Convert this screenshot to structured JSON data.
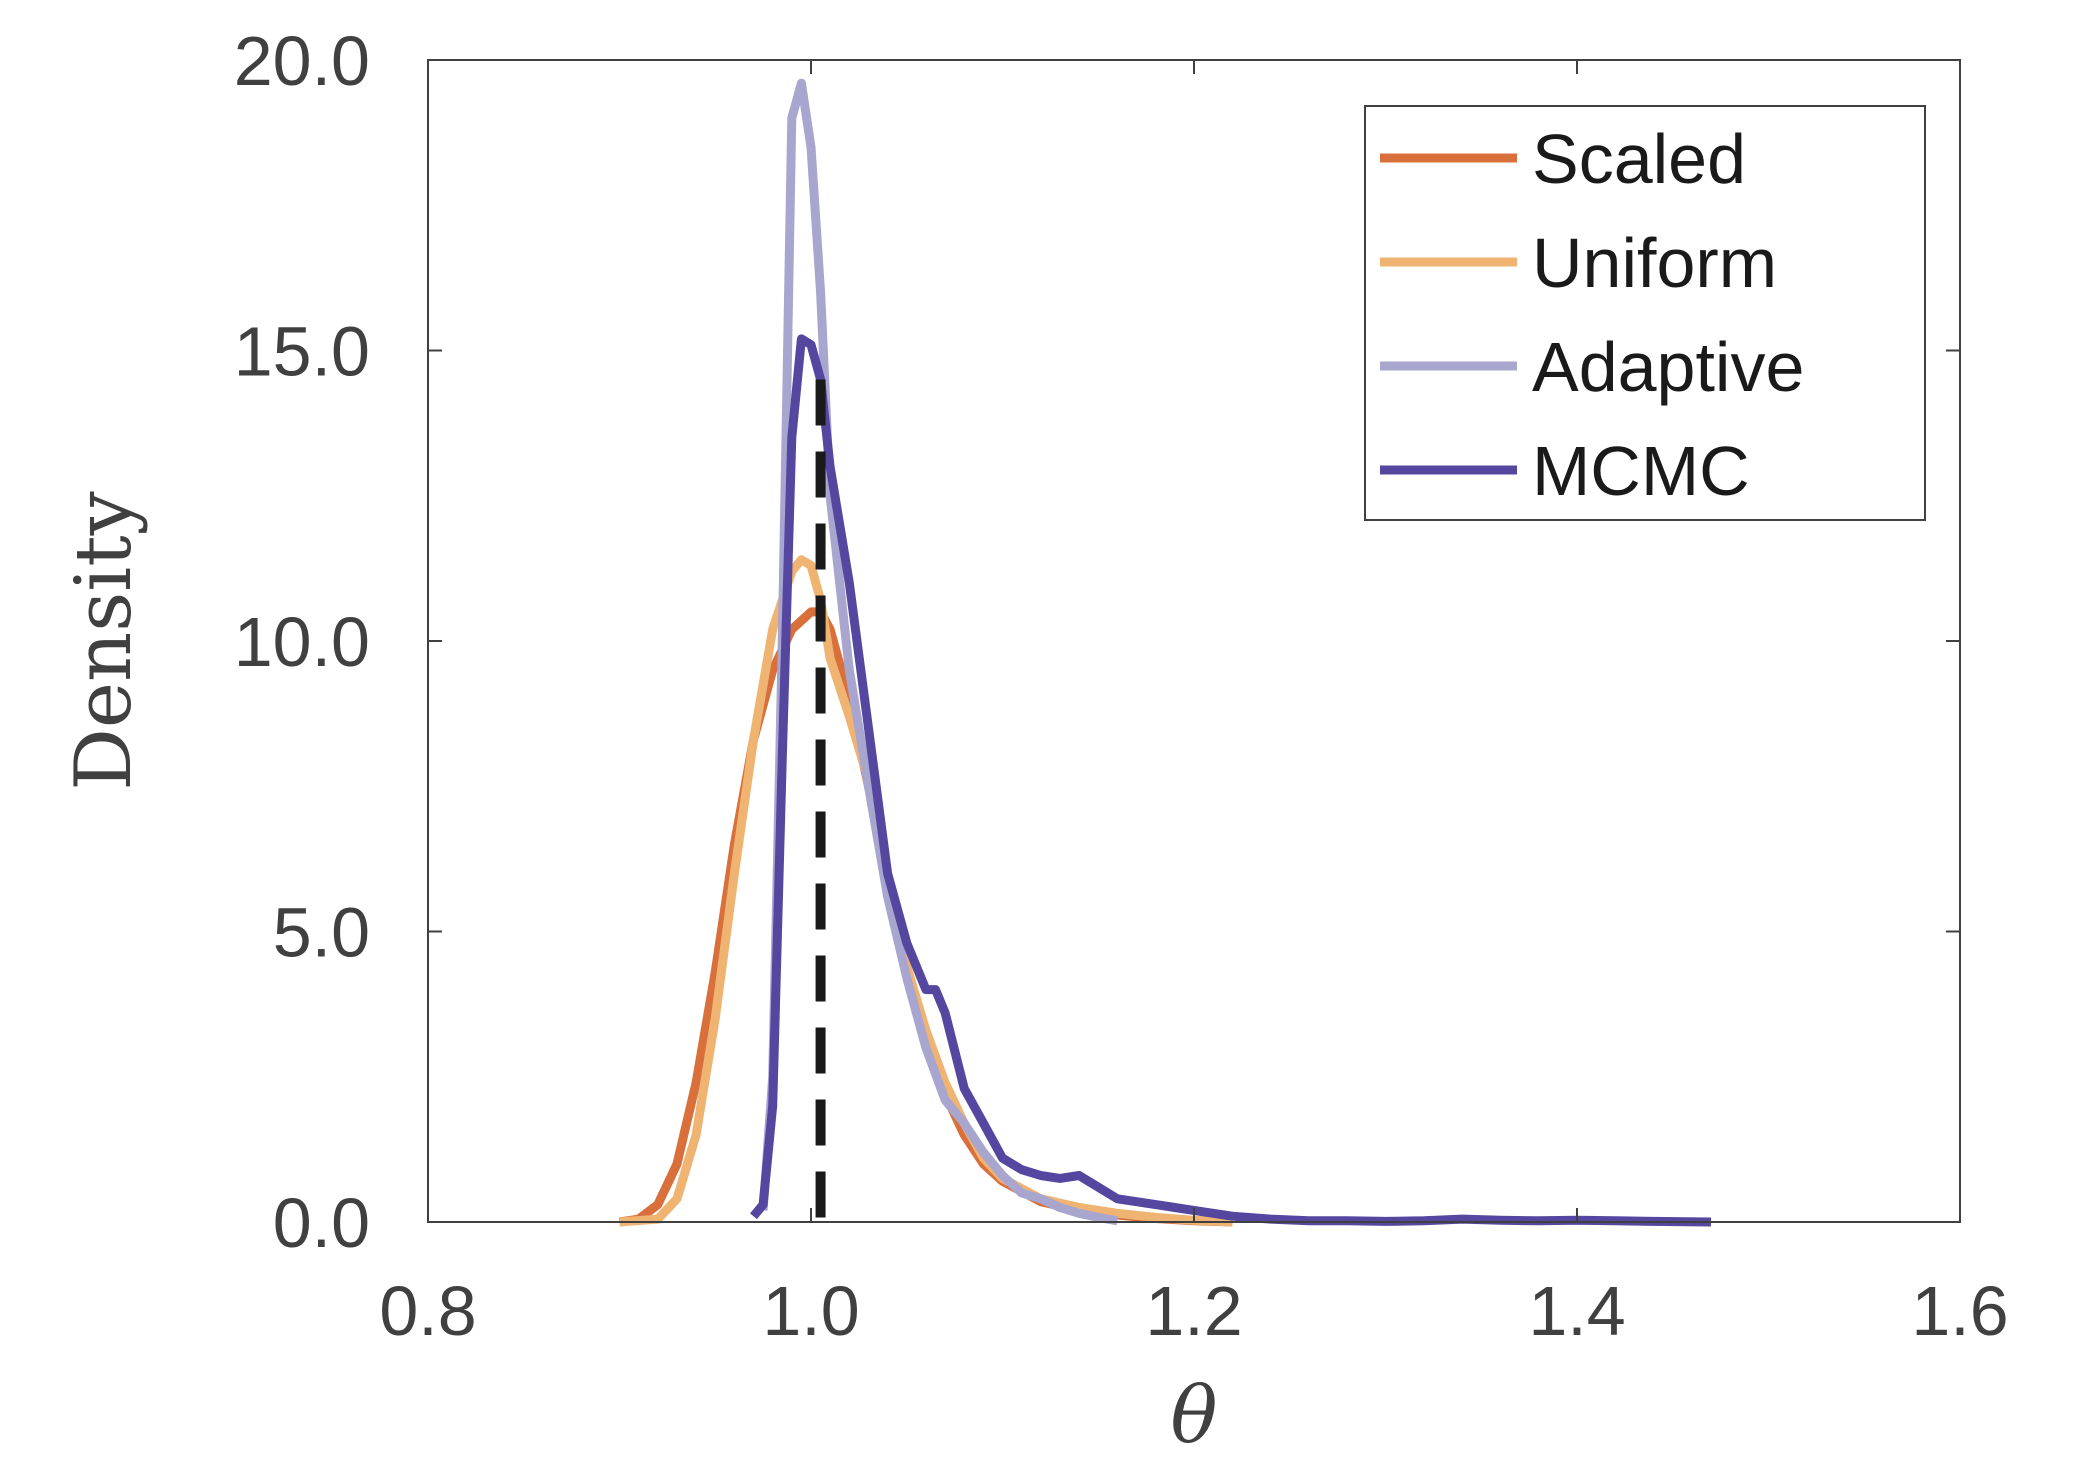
{
  "chart_data": {
    "type": "line",
    "xlabel": "θ",
    "ylabel": "Density",
    "xlim": [
      0.8,
      1.6
    ],
    "ylim": [
      0,
      20
    ],
    "xticks": [
      0.8,
      1.0,
      1.2,
      1.4,
      1.6
    ],
    "xtick_labels": [
      "0.8",
      "1.0",
      "1.2",
      "1.4",
      "1.6"
    ],
    "yticks": [
      0,
      5,
      10,
      15,
      20
    ],
    "ytick_labels": [
      "0.0",
      "5.0",
      "10.0",
      "15.0",
      "20.0"
    ],
    "grid": false,
    "legend_position": "top-right",
    "reference_line": {
      "x": 1.005,
      "style": "dashed",
      "color": "#1a1a1a"
    },
    "series": [
      {
        "name": "Scaled",
        "color": "#D9703B",
        "x": [
          0.9,
          0.91,
          0.92,
          0.93,
          0.94,
          0.95,
          0.96,
          0.97,
          0.98,
          0.99,
          1.0,
          1.005,
          1.01,
          1.02,
          1.03,
          1.04,
          1.05,
          1.06,
          1.07,
          1.08,
          1.09,
          1.1,
          1.12,
          1.14,
          1.16,
          1.18,
          1.2,
          1.22
        ],
        "y": [
          0.0,
          0.05,
          0.3,
          1.0,
          2.4,
          4.3,
          6.5,
          8.3,
          9.5,
          10.2,
          10.5,
          10.5,
          10.2,
          9.0,
          7.5,
          5.9,
          4.4,
          3.2,
          2.2,
          1.5,
          1.0,
          0.7,
          0.35,
          0.2,
          0.12,
          0.06,
          0.02,
          0.0
        ]
      },
      {
        "name": "Uniform",
        "color": "#F0B472",
        "x": [
          0.9,
          0.92,
          0.93,
          0.94,
          0.95,
          0.96,
          0.97,
          0.98,
          0.99,
          0.995,
          1.0,
          1.005,
          1.01,
          1.02,
          1.03,
          1.04,
          1.05,
          1.06,
          1.07,
          1.08,
          1.09,
          1.1,
          1.12,
          1.14,
          1.16,
          1.18,
          1.2,
          1.22
        ],
        "y": [
          0.0,
          0.05,
          0.4,
          1.5,
          3.5,
          6.0,
          8.3,
          10.2,
          11.2,
          11.4,
          11.3,
          10.7,
          9.7,
          8.7,
          7.6,
          6.0,
          4.4,
          3.3,
          2.4,
          1.7,
          1.1,
          0.75,
          0.4,
          0.25,
          0.15,
          0.08,
          0.03,
          0.0
        ]
      },
      {
        "name": "Adaptive",
        "color": "#A8A5CF",
        "x": [
          0.975,
          0.98,
          0.985,
          0.99,
          0.995,
          1.0,
          1.005,
          1.01,
          1.02,
          1.03,
          1.04,
          1.05,
          1.06,
          1.07,
          1.08,
          1.09,
          1.1,
          1.11,
          1.12,
          1.13,
          1.14,
          1.15,
          1.16
        ],
        "y": [
          0.2,
          2.5,
          10.0,
          19.0,
          19.6,
          18.5,
          16.0,
          12.5,
          9.5,
          7.5,
          5.6,
          4.2,
          3.0,
          2.1,
          1.7,
          1.2,
          0.8,
          0.5,
          0.4,
          0.25,
          0.15,
          0.08,
          0.02
        ]
      },
      {
        "name": "MCMC",
        "color": "#5547A0",
        "x": [
          0.97,
          0.975,
          0.98,
          0.985,
          0.99,
          0.995,
          1.0,
          1.005,
          1.01,
          1.02,
          1.03,
          1.04,
          1.05,
          1.06,
          1.065,
          1.07,
          1.08,
          1.09,
          1.1,
          1.11,
          1.12,
          1.13,
          1.14,
          1.15,
          1.16,
          1.17,
          1.18,
          1.19,
          1.2,
          1.21,
          1.22,
          1.24,
          1.26,
          1.28,
          1.3,
          1.32,
          1.34,
          1.36,
          1.38,
          1.4,
          1.42,
          1.44,
          1.47
        ],
        "y": [
          0.1,
          0.3,
          2.0,
          8.0,
          13.5,
          15.2,
          15.1,
          14.5,
          13.0,
          11.0,
          8.5,
          6.0,
          4.8,
          4.0,
          4.0,
          3.6,
          2.3,
          1.7,
          1.1,
          0.9,
          0.8,
          0.75,
          0.8,
          0.6,
          0.4,
          0.35,
          0.3,
          0.25,
          0.2,
          0.15,
          0.1,
          0.05,
          0.02,
          0.02,
          0.01,
          0.02,
          0.05,
          0.03,
          0.02,
          0.03,
          0.02,
          0.01,
          0.0
        ]
      }
    ]
  }
}
